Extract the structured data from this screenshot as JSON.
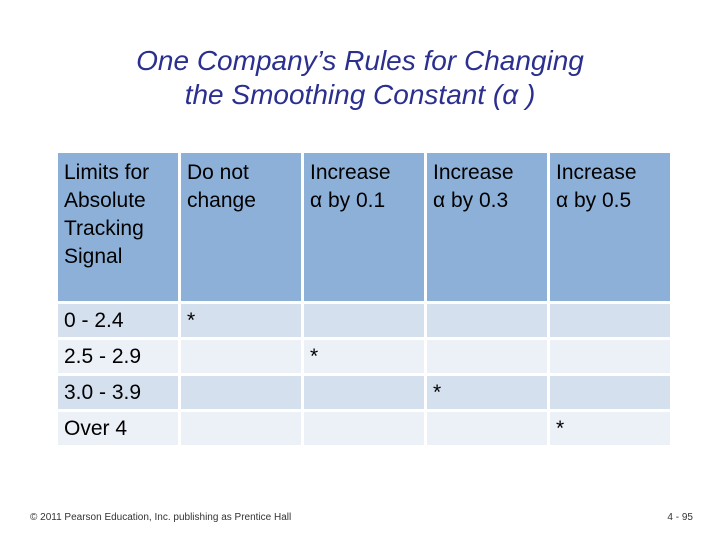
{
  "title": {
    "line1": "One Company’s Rules for Changing",
    "line2": "the Smoothing Constant (α )"
  },
  "table": {
    "headers": [
      [
        "Limits for",
        "Absolute",
        "Tracking",
        "Signal"
      ],
      [
        "Do not",
        "change"
      ],
      [
        "Increase",
        "α by 0.1"
      ],
      [
        "Increase",
        "α by 0.3"
      ],
      [
        "Increase",
        "α by 0.5"
      ]
    ],
    "rows": [
      [
        "0 - 2.4",
        "*",
        "",
        "",
        ""
      ],
      [
        "2.5 - 2.9",
        "",
        "*",
        "",
        ""
      ],
      [
        "3.0 - 3.9",
        "",
        "",
        "*",
        ""
      ],
      [
        "Over 4",
        "",
        "",
        "",
        "*"
      ]
    ]
  },
  "footer": {
    "copyright": "© 2011 Pearson Education, Inc. publishing as Prentice Hall",
    "page": "4 - 95"
  }
}
